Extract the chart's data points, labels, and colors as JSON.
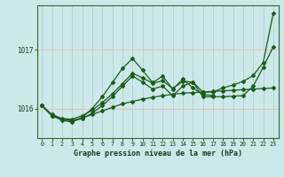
{
  "title": "Graphe pression niveau de la mer (hPa)",
  "bg_color": "#cce8e8",
  "grid_color_h": "#ffaaaa",
  "grid_color_v": "#aacccc",
  "line_color": "#1a5c1a",
  "x_labels": [
    "0",
    "1",
    "2",
    "3",
    "4",
    "5",
    "6",
    "7",
    "8",
    "9",
    "10",
    "11",
    "12",
    "13",
    "14",
    "15",
    "16",
    "17",
    "18",
    "19",
    "20",
    "21",
    "22",
    "23"
  ],
  "yticks": [
    1016,
    1017
  ],
  "ylim": [
    1015.5,
    1017.75
  ],
  "series": {
    "line1": [
      1016.05,
      1015.88,
      1015.82,
      1015.8,
      1015.84,
      1015.9,
      1015.96,
      1016.02,
      1016.08,
      1016.12,
      1016.16,
      1016.19,
      1016.22,
      1016.24,
      1016.26,
      1016.27,
      1016.28,
      1016.29,
      1016.3,
      1016.31,
      1016.32,
      1016.33,
      1016.34,
      1016.35
    ],
    "line2": [
      1016.05,
      1015.88,
      1015.82,
      1015.79,
      1015.83,
      1015.92,
      1016.05,
      1016.2,
      1016.38,
      1016.55,
      1016.45,
      1016.33,
      1016.38,
      1016.22,
      1016.38,
      1016.45,
      1016.2,
      1016.2,
      1016.2,
      1016.21,
      1016.22,
      1016.38,
      1016.7,
      1017.05
    ],
    "line3": [
      1016.05,
      1015.88,
      1015.8,
      1015.77,
      1015.85,
      1016.0,
      1016.2,
      1016.44,
      1016.68,
      1016.85,
      1016.65,
      1016.44,
      1016.55,
      1016.33,
      1016.5,
      1016.35,
      1016.24,
      1016.22,
      null,
      null,
      null,
      null,
      null,
      null
    ],
    "line4": [
      1016.05,
      1015.9,
      1015.83,
      1015.82,
      1015.88,
      1015.97,
      1016.1,
      1016.25,
      1016.42,
      1016.6,
      1016.52,
      1016.43,
      1016.47,
      1016.34,
      1016.46,
      1016.45,
      1016.28,
      1016.28,
      1016.35,
      1016.4,
      1016.46,
      1016.56,
      1016.78,
      1017.62
    ]
  }
}
